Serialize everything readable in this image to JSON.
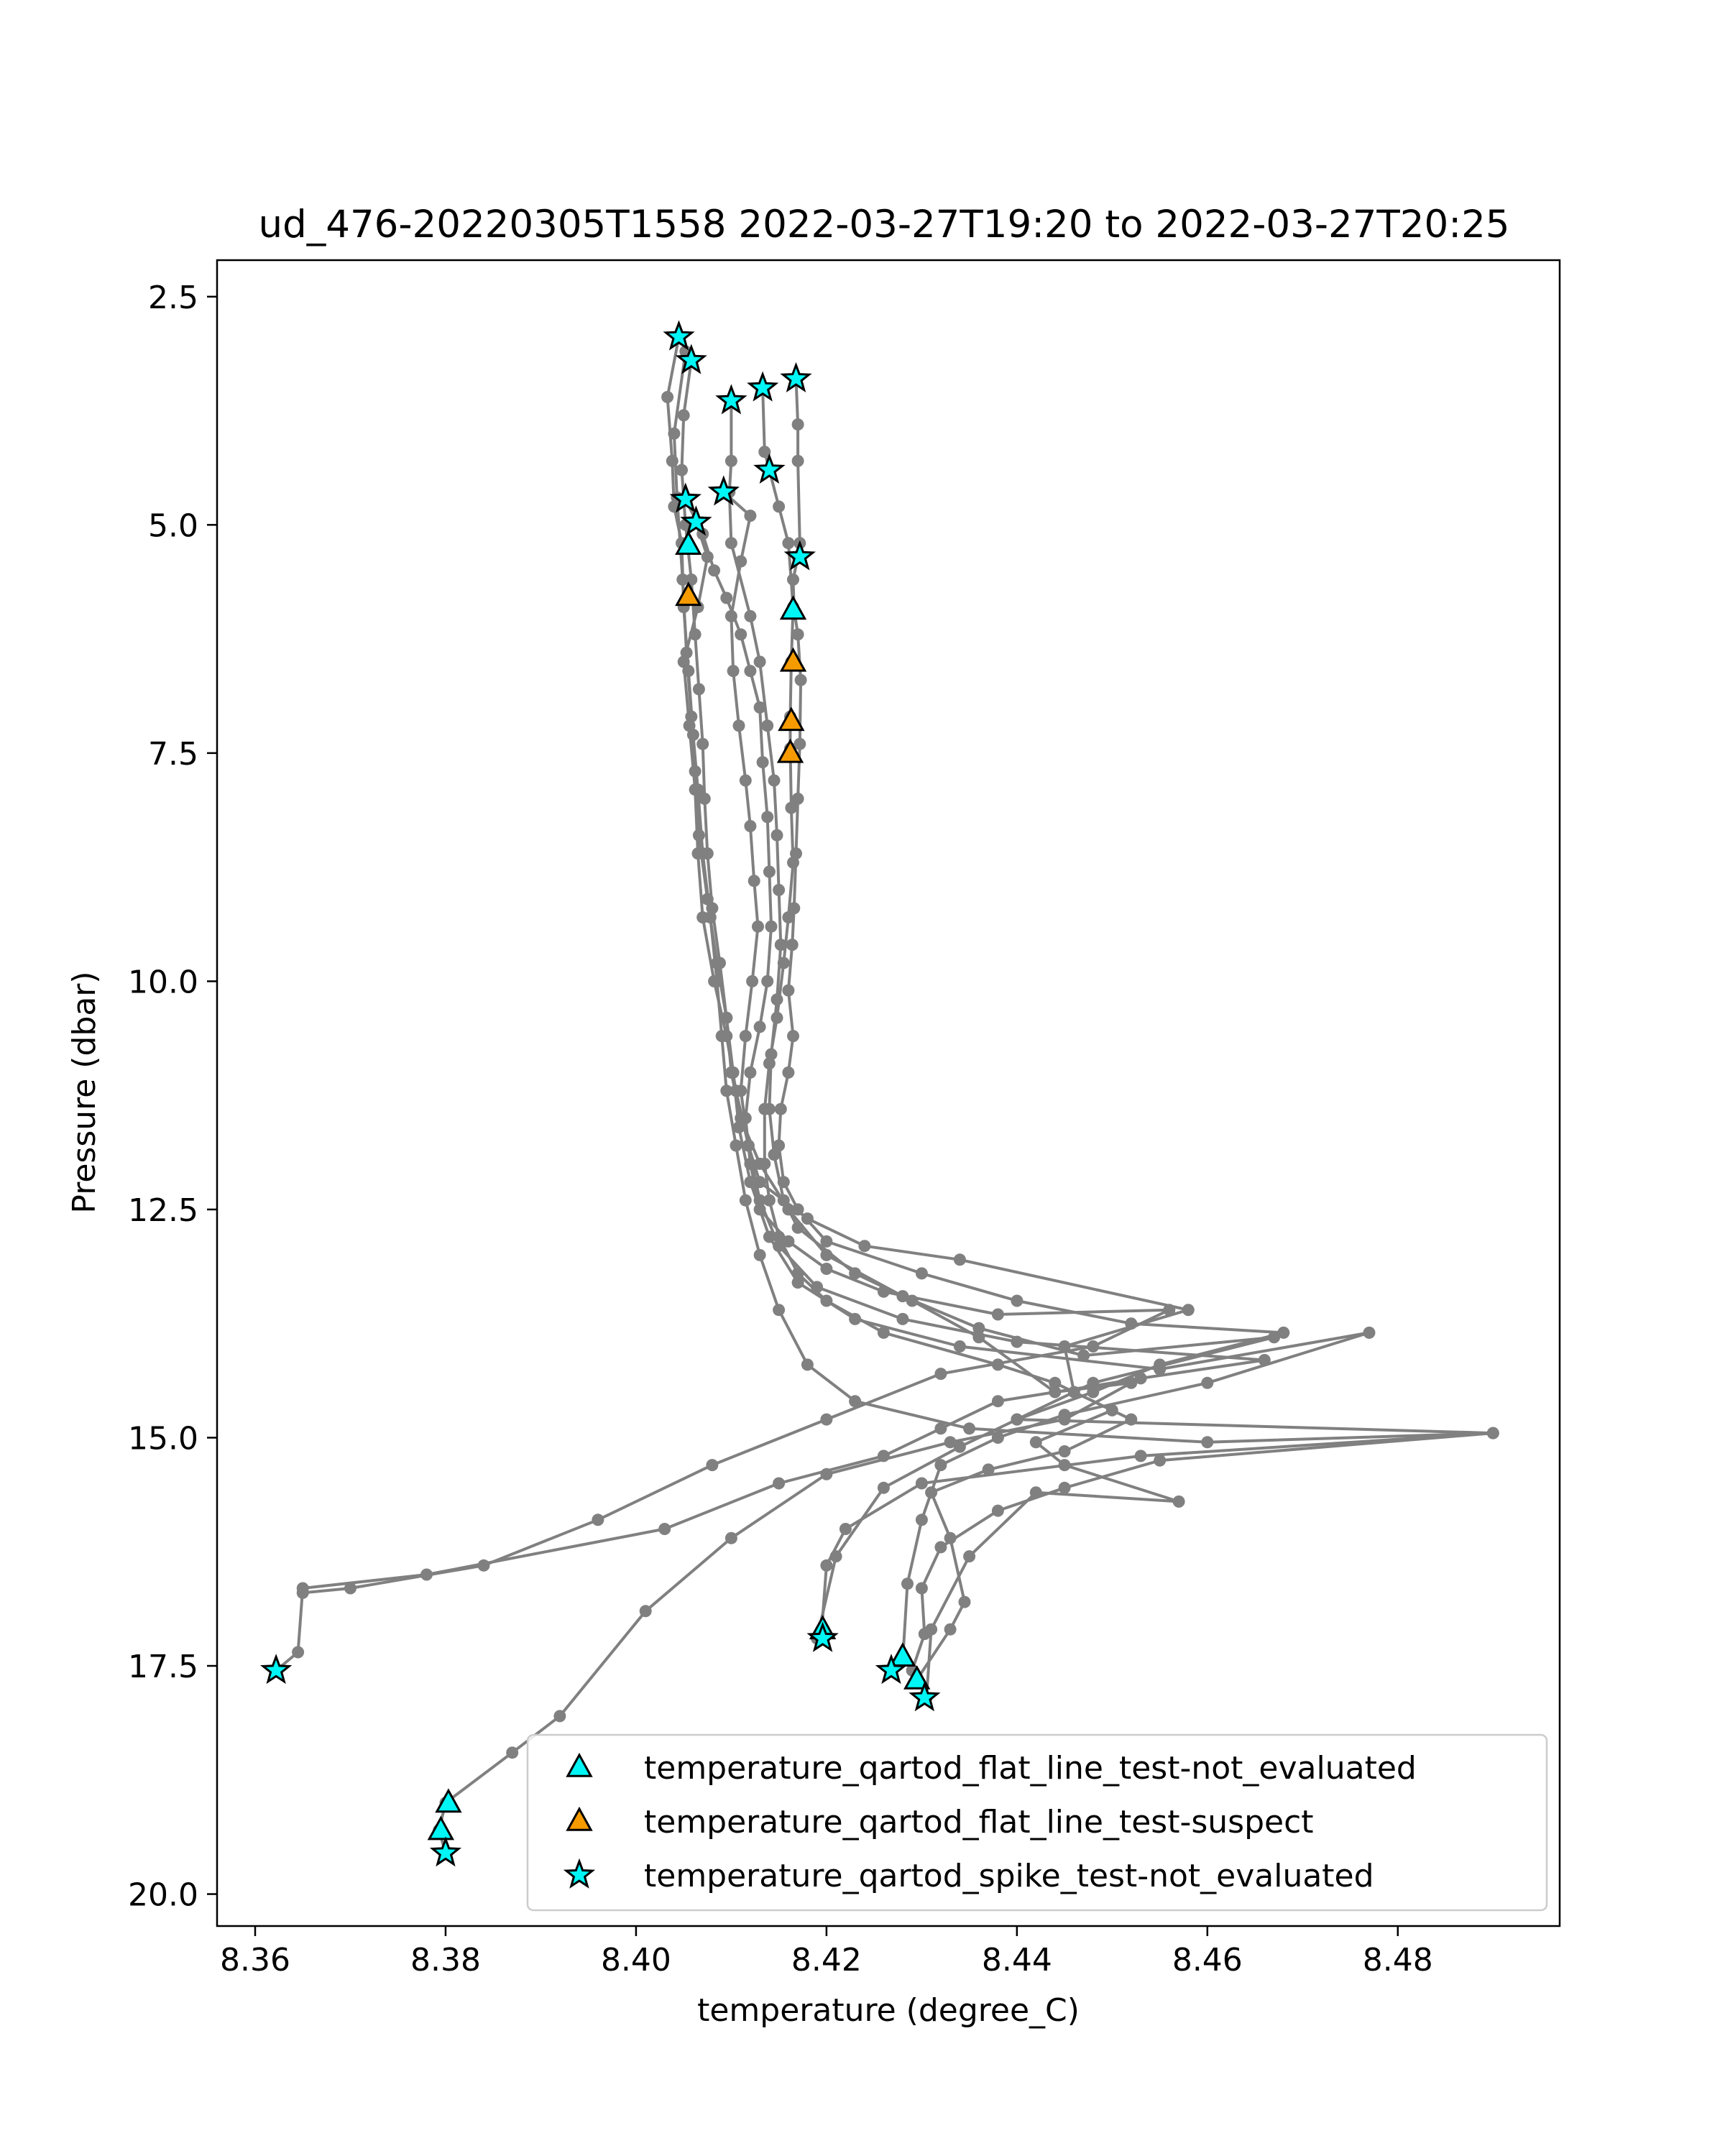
{
  "chart_data": {
    "type": "line",
    "title": "ud_476-20220305T1558 2022-03-27T19:20 to 2022-03-27T20:25",
    "xlabel": "temperature (degree_C)",
    "ylabel": "Pressure (dbar)",
    "xlim": [
      8.356,
      8.497
    ],
    "ylim": [
      20.35,
      2.1
    ],
    "y_inverted": true,
    "grid": false,
    "legend_position": "lower-right",
    "x_ticks": [
      8.36,
      8.38,
      8.4,
      8.42,
      8.44,
      8.46,
      8.48
    ],
    "x_tick_labels": [
      "8.36",
      "8.38",
      "8.40",
      "8.42",
      "8.44",
      "8.46",
      "8.48"
    ],
    "y_ticks": [
      2.5,
      5.0,
      7.5,
      10.0,
      12.5,
      15.0,
      17.5,
      20.0
    ],
    "y_tick_labels": [
      "2.5",
      "5.0",
      "7.5",
      "10.0",
      "12.5",
      "15.0",
      "17.5",
      "20.0"
    ],
    "line_color": "#808080",
    "profiles": [
      [
        [
          8.4045,
          2.94
        ],
        [
          8.4033,
          3.6
        ],
        [
          8.4038,
          4.3
        ],
        [
          8.404,
          4.8
        ],
        [
          8.4048,
          5.2
        ],
        [
          8.405,
          5.9
        ],
        [
          8.4055,
          6.6
        ],
        [
          8.406,
          7.3
        ],
        [
          8.4065,
          7.9
        ],
        [
          8.407,
          8.6
        ],
        [
          8.4078,
          9.3
        ],
        [
          8.4085,
          10.0
        ],
        [
          8.409,
          10.6
        ],
        [
          8.4095,
          11.2
        ],
        [
          8.4105,
          11.8
        ],
        [
          8.4115,
          12.4
        ],
        [
          8.413,
          13.0
        ],
        [
          8.415,
          13.6
        ],
        [
          8.418,
          14.2
        ],
        [
          8.423,
          14.6
        ],
        [
          8.435,
          14.9
        ],
        [
          8.46,
          15.05
        ],
        [
          8.49,
          14.95
        ],
        [
          8.453,
          15.2
        ],
        [
          8.43,
          15.5
        ],
        [
          8.422,
          16.0
        ],
        [
          8.42,
          16.4
        ],
        [
          8.4195,
          17.1
        ]
      ],
      [
        [
          8.4058,
          3.2
        ],
        [
          8.405,
          3.8
        ],
        [
          8.4048,
          4.4
        ],
        [
          8.4052,
          5.0
        ],
        [
          8.4058,
          5.6
        ],
        [
          8.4062,
          6.2
        ],
        [
          8.4066,
          6.8
        ],
        [
          8.407,
          7.4
        ],
        [
          8.4072,
          8.0
        ],
        [
          8.4075,
          8.6
        ],
        [
          8.408,
          9.2
        ],
        [
          8.4088,
          9.8
        ],
        [
          8.4095,
          10.4
        ],
        [
          8.4102,
          11.0
        ],
        [
          8.4108,
          11.6
        ],
        [
          8.412,
          12.2
        ],
        [
          8.414,
          12.8
        ],
        [
          8.417,
          13.3
        ],
        [
          8.423,
          13.7
        ],
        [
          8.434,
          14.0
        ],
        [
          8.455,
          14.25
        ],
        [
          8.477,
          13.85
        ],
        [
          8.46,
          14.4
        ],
        [
          8.445,
          14.75
        ],
        [
          8.438,
          15.0
        ],
        [
          8.432,
          15.3
        ],
        [
          8.43,
          15.9
        ],
        [
          8.4285,
          16.6
        ],
        [
          8.428,
          17.45
        ],
        [
          8.4268,
          17.55
        ]
      ],
      [
        [
          8.4052,
          3.1
        ],
        [
          8.404,
          4.0
        ],
        [
          8.4043,
          4.7
        ],
        [
          8.4049,
          5.6
        ],
        [
          8.4053,
          6.4
        ],
        [
          8.4058,
          7.1
        ],
        [
          8.4062,
          7.7
        ],
        [
          8.4066,
          8.4
        ],
        [
          8.4075,
          9.1
        ],
        [
          8.4085,
          9.8
        ],
        [
          8.4095,
          10.4
        ],
        [
          8.41,
          11.0
        ],
        [
          8.411,
          11.5
        ],
        [
          8.413,
          12.0
        ],
        [
          8.416,
          12.5
        ],
        [
          8.42,
          13.0
        ],
        [
          8.428,
          13.45
        ],
        [
          8.436,
          13.8
        ],
        [
          8.447,
          14.1
        ],
        [
          8.467,
          13.9
        ],
        [
          8.448,
          14.4
        ],
        [
          8.44,
          14.8
        ],
        [
          8.434,
          15.1
        ],
        [
          8.426,
          15.55
        ],
        [
          8.421,
          16.3
        ],
        [
          8.419,
          17.2
        ]
      ],
      [
        [
          8.4063,
          4.97
        ],
        [
          8.4075,
          5.35
        ],
        [
          8.4065,
          5.9
        ],
        [
          8.405,
          6.5
        ],
        [
          8.4056,
          7.2
        ],
        [
          8.4062,
          7.9
        ],
        [
          8.4065,
          8.6
        ],
        [
          8.407,
          9.3
        ],
        [
          8.4082,
          10.0
        ],
        [
          8.4095,
          10.6
        ],
        [
          8.4105,
          11.2
        ],
        [
          8.4118,
          11.8
        ],
        [
          8.413,
          12.4
        ],
        [
          8.415,
          12.9
        ],
        [
          8.419,
          13.35
        ],
        [
          8.428,
          13.7
        ],
        [
          8.44,
          13.95
        ],
        [
          8.466,
          14.15
        ],
        [
          8.453,
          14.35
        ],
        [
          8.438,
          14.6
        ],
        [
          8.432,
          14.9
        ],
        [
          8.426,
          15.2
        ],
        [
          8.415,
          15.5
        ],
        [
          8.403,
          16.0
        ],
        [
          8.378,
          16.5
        ],
        [
          8.365,
          16.65
        ],
        [
          8.3645,
          17.35
        ],
        [
          8.3622,
          17.55
        ]
      ],
      [
        [
          8.4052,
          4.72
        ],
        [
          8.407,
          5.1
        ],
        [
          8.4082,
          5.5
        ],
        [
          8.4095,
          5.8
        ],
        [
          8.411,
          6.2
        ],
        [
          8.412,
          6.6
        ],
        [
          8.413,
          7.0
        ],
        [
          8.4133,
          7.6
        ],
        [
          8.4138,
          8.2
        ],
        [
          8.414,
          8.8
        ],
        [
          8.4142,
          9.4
        ],
        [
          8.4138,
          10.0
        ],
        [
          8.413,
          10.5
        ],
        [
          8.412,
          11.0
        ],
        [
          8.4115,
          11.5
        ],
        [
          8.412,
          12.0
        ],
        [
          8.413,
          12.5
        ],
        [
          8.416,
          12.85
        ],
        [
          8.42,
          13.15
        ],
        [
          8.426,
          13.4
        ],
        [
          8.438,
          13.65
        ],
        [
          8.456,
          13.6
        ],
        [
          8.448,
          14.0
        ],
        [
          8.432,
          14.3
        ],
        [
          8.42,
          14.8
        ],
        [
          8.408,
          15.3
        ],
        [
          8.396,
          15.9
        ],
        [
          8.384,
          16.4
        ],
        [
          8.37,
          16.65
        ],
        [
          8.365,
          16.7
        ]
      ],
      [
        [
          8.4092,
          4.64
        ],
        [
          8.412,
          4.9
        ],
        [
          8.411,
          5.4
        ],
        [
          8.41,
          6.0
        ],
        [
          8.4102,
          6.6
        ],
        [
          8.4108,
          7.2
        ],
        [
          8.4115,
          7.8
        ],
        [
          8.412,
          8.3
        ],
        [
          8.4124,
          8.9
        ],
        [
          8.4128,
          9.4
        ],
        [
          8.4122,
          10.0
        ],
        [
          8.4115,
          10.6
        ],
        [
          8.411,
          11.2
        ],
        [
          8.4118,
          11.8
        ],
        [
          8.413,
          12.2
        ],
        [
          8.418,
          12.6
        ],
        [
          8.424,
          12.9
        ],
        [
          8.434,
          13.05
        ],
        [
          8.458,
          13.6
        ],
        [
          8.445,
          14.0
        ],
        [
          8.446,
          14.5
        ],
        [
          8.452,
          14.8
        ],
        [
          8.445,
          15.15
        ],
        [
          8.437,
          15.35
        ],
        [
          8.431,
          15.6
        ],
        [
          8.433,
          16.1
        ],
        [
          8.4345,
          16.8
        ],
        [
          8.433,
          17.1
        ],
        [
          8.4295,
          17.65
        ]
      ],
      [
        [
          8.41,
          3.64
        ],
        [
          8.41,
          4.3
        ],
        [
          8.4098,
          4.64
        ],
        [
          8.41,
          5.2
        ],
        [
          8.412,
          6.0
        ],
        [
          8.413,
          6.5
        ],
        [
          8.4138,
          7.2
        ],
        [
          8.4145,
          7.8
        ],
        [
          8.4148,
          8.4
        ],
        [
          8.415,
          9.0
        ],
        [
          8.4152,
          9.6
        ],
        [
          8.4148,
          10.2
        ],
        [
          8.4142,
          10.8
        ],
        [
          8.414,
          11.4
        ],
        [
          8.4145,
          11.9
        ],
        [
          8.4155,
          12.4
        ],
        [
          8.417,
          12.7
        ],
        [
          8.423,
          13.2
        ],
        [
          8.429,
          13.5
        ],
        [
          8.436,
          13.9
        ],
        [
          8.444,
          14.5
        ],
        [
          8.452,
          14.4
        ],
        [
          8.445,
          14.8
        ],
        [
          8.433,
          15.05
        ],
        [
          8.42,
          15.4
        ],
        [
          8.41,
          16.1
        ],
        [
          8.401,
          16.9
        ],
        [
          8.392,
          18.05
        ],
        [
          8.387,
          18.45
        ],
        [
          8.38,
          19.0
        ],
        [
          8.3793,
          19.3
        ],
        [
          8.38,
          19.55
        ]
      ],
      [
        [
          8.4133,
          3.5
        ],
        [
          8.4135,
          4.2
        ],
        [
          8.414,
          4.4
        ],
        [
          8.415,
          4.8
        ],
        [
          8.416,
          5.2
        ],
        [
          8.4165,
          5.9
        ],
        [
          8.4163,
          6.5
        ],
        [
          8.4162,
          7.1
        ],
        [
          8.4162,
          7.45
        ],
        [
          8.4163,
          8.1
        ],
        [
          8.4165,
          8.7
        ],
        [
          8.416,
          9.3
        ],
        [
          8.4155,
          9.8
        ],
        [
          8.4148,
          10.4
        ],
        [
          8.414,
          10.9
        ],
        [
          8.4135,
          11.4
        ],
        [
          8.4135,
          12.0
        ],
        [
          8.414,
          12.4
        ],
        [
          8.415,
          12.8
        ],
        [
          8.417,
          13.2
        ],
        [
          8.42,
          13.5
        ],
        [
          8.426,
          13.85
        ],
        [
          8.438,
          14.2
        ],
        [
          8.444,
          14.4
        ],
        [
          8.45,
          14.7
        ],
        [
          8.442,
          15.05
        ],
        [
          8.445,
          15.3
        ],
        [
          8.457,
          15.7
        ],
        [
          8.442,
          15.6
        ],
        [
          8.435,
          16.3
        ],
        [
          8.431,
          17.1
        ],
        [
          8.4305,
          17.85
        ]
      ],
      [
        [
          8.4168,
          3.4
        ],
        [
          8.417,
          3.9
        ],
        [
          8.417,
          4.3
        ],
        [
          8.4172,
          5.2
        ],
        [
          8.417,
          5.35
        ],
        [
          8.4165,
          5.6
        ],
        [
          8.4166,
          5.93
        ],
        [
          8.417,
          6.2
        ],
        [
          8.4173,
          6.7
        ],
        [
          8.4172,
          7.4
        ],
        [
          8.417,
          8.0
        ],
        [
          8.4168,
          8.6
        ],
        [
          8.4166,
          9.2
        ],
        [
          8.4164,
          9.6
        ],
        [
          8.416,
          10.1
        ],
        [
          8.4165,
          10.6
        ],
        [
          8.416,
          11.0
        ],
        [
          8.4152,
          11.4
        ],
        [
          8.415,
          11.8
        ],
        [
          8.4155,
          12.2
        ],
        [
          8.417,
          12.5
        ],
        [
          8.42,
          12.85
        ],
        [
          8.43,
          13.2
        ],
        [
          8.44,
          13.5
        ],
        [
          8.452,
          13.75
        ],
        [
          8.468,
          13.85
        ],
        [
          8.455,
          14.2
        ],
        [
          8.448,
          14.5
        ],
        [
          8.44,
          14.8
        ],
        [
          8.49,
          14.95
        ],
        [
          8.455,
          15.25
        ],
        [
          8.445,
          15.55
        ],
        [
          8.438,
          15.8
        ],
        [
          8.432,
          16.2
        ],
        [
          8.43,
          16.65
        ],
        [
          8.4303,
          17.15
        ],
        [
          8.429,
          17.55
        ]
      ]
    ],
    "series": [
      {
        "name": "temperature_qartod_flat_line_test-not_evaluated",
        "marker": "triangle",
        "color": "#00f5f5",
        "points": [
          [
            8.4055,
            5.22
          ],
          [
            8.4165,
            5.93
          ],
          [
            8.4196,
            17.1
          ],
          [
            8.428,
            17.4
          ],
          [
            8.4295,
            17.65
          ],
          [
            8.3803,
            19.0
          ],
          [
            8.3795,
            19.3
          ]
        ]
      },
      {
        "name": "temperature_qartod_flat_line_test-suspect",
        "marker": "triangle",
        "color": "#f59b00",
        "points": [
          [
            8.4055,
            5.78
          ],
          [
            8.4165,
            6.5
          ],
          [
            8.4163,
            7.15
          ],
          [
            8.4162,
            7.5
          ]
        ]
      },
      {
        "name": "temperature_qartod_spike_test-not_evaluated",
        "marker": "star",
        "color": "#00f5f5",
        "points": [
          [
            8.4045,
            2.94
          ],
          [
            8.4058,
            3.2
          ],
          [
            8.4133,
            3.5
          ],
          [
            8.4168,
            3.4
          ],
          [
            8.41,
            3.64
          ],
          [
            8.414,
            4.4
          ],
          [
            8.4052,
            4.72
          ],
          [
            8.4092,
            4.64
          ],
          [
            8.4063,
            4.97
          ],
          [
            8.4172,
            5.35
          ],
          [
            8.3622,
            17.55
          ],
          [
            8.4196,
            17.2
          ],
          [
            8.4268,
            17.55
          ],
          [
            8.4303,
            17.85
          ],
          [
            8.38,
            19.55
          ]
        ]
      }
    ]
  }
}
